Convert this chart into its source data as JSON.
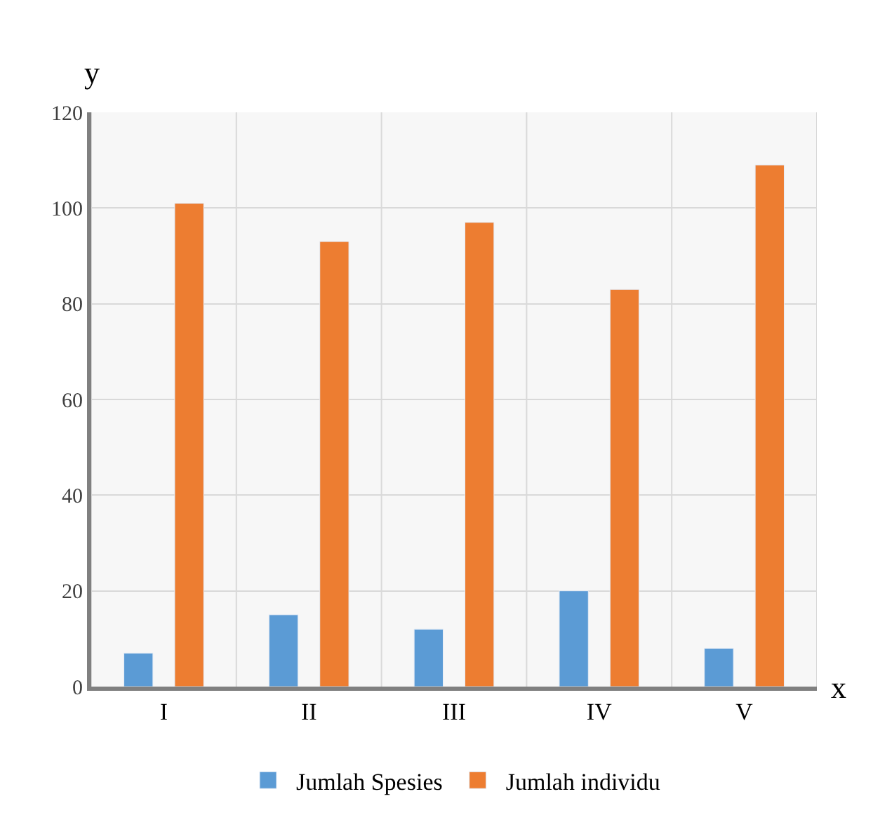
{
  "chart_data": {
    "type": "bar",
    "xlabel": "x",
    "ylabel": "y",
    "categories": [
      "I",
      "II",
      "III",
      "IV",
      "V"
    ],
    "series": [
      {
        "name": "Jumlah Spesies",
        "color": "#5b9bd5",
        "values": [
          7,
          15,
          12,
          20,
          8
        ]
      },
      {
        "name": "Jumlah individu",
        "color": "#ed7d31",
        "values": [
          101,
          93,
          97,
          83,
          109
        ]
      }
    ],
    "ylim": [
      0,
      120
    ],
    "yticks": [
      0,
      20,
      40,
      60,
      80,
      100,
      120
    ],
    "grid": true,
    "legend": "bottom"
  }
}
